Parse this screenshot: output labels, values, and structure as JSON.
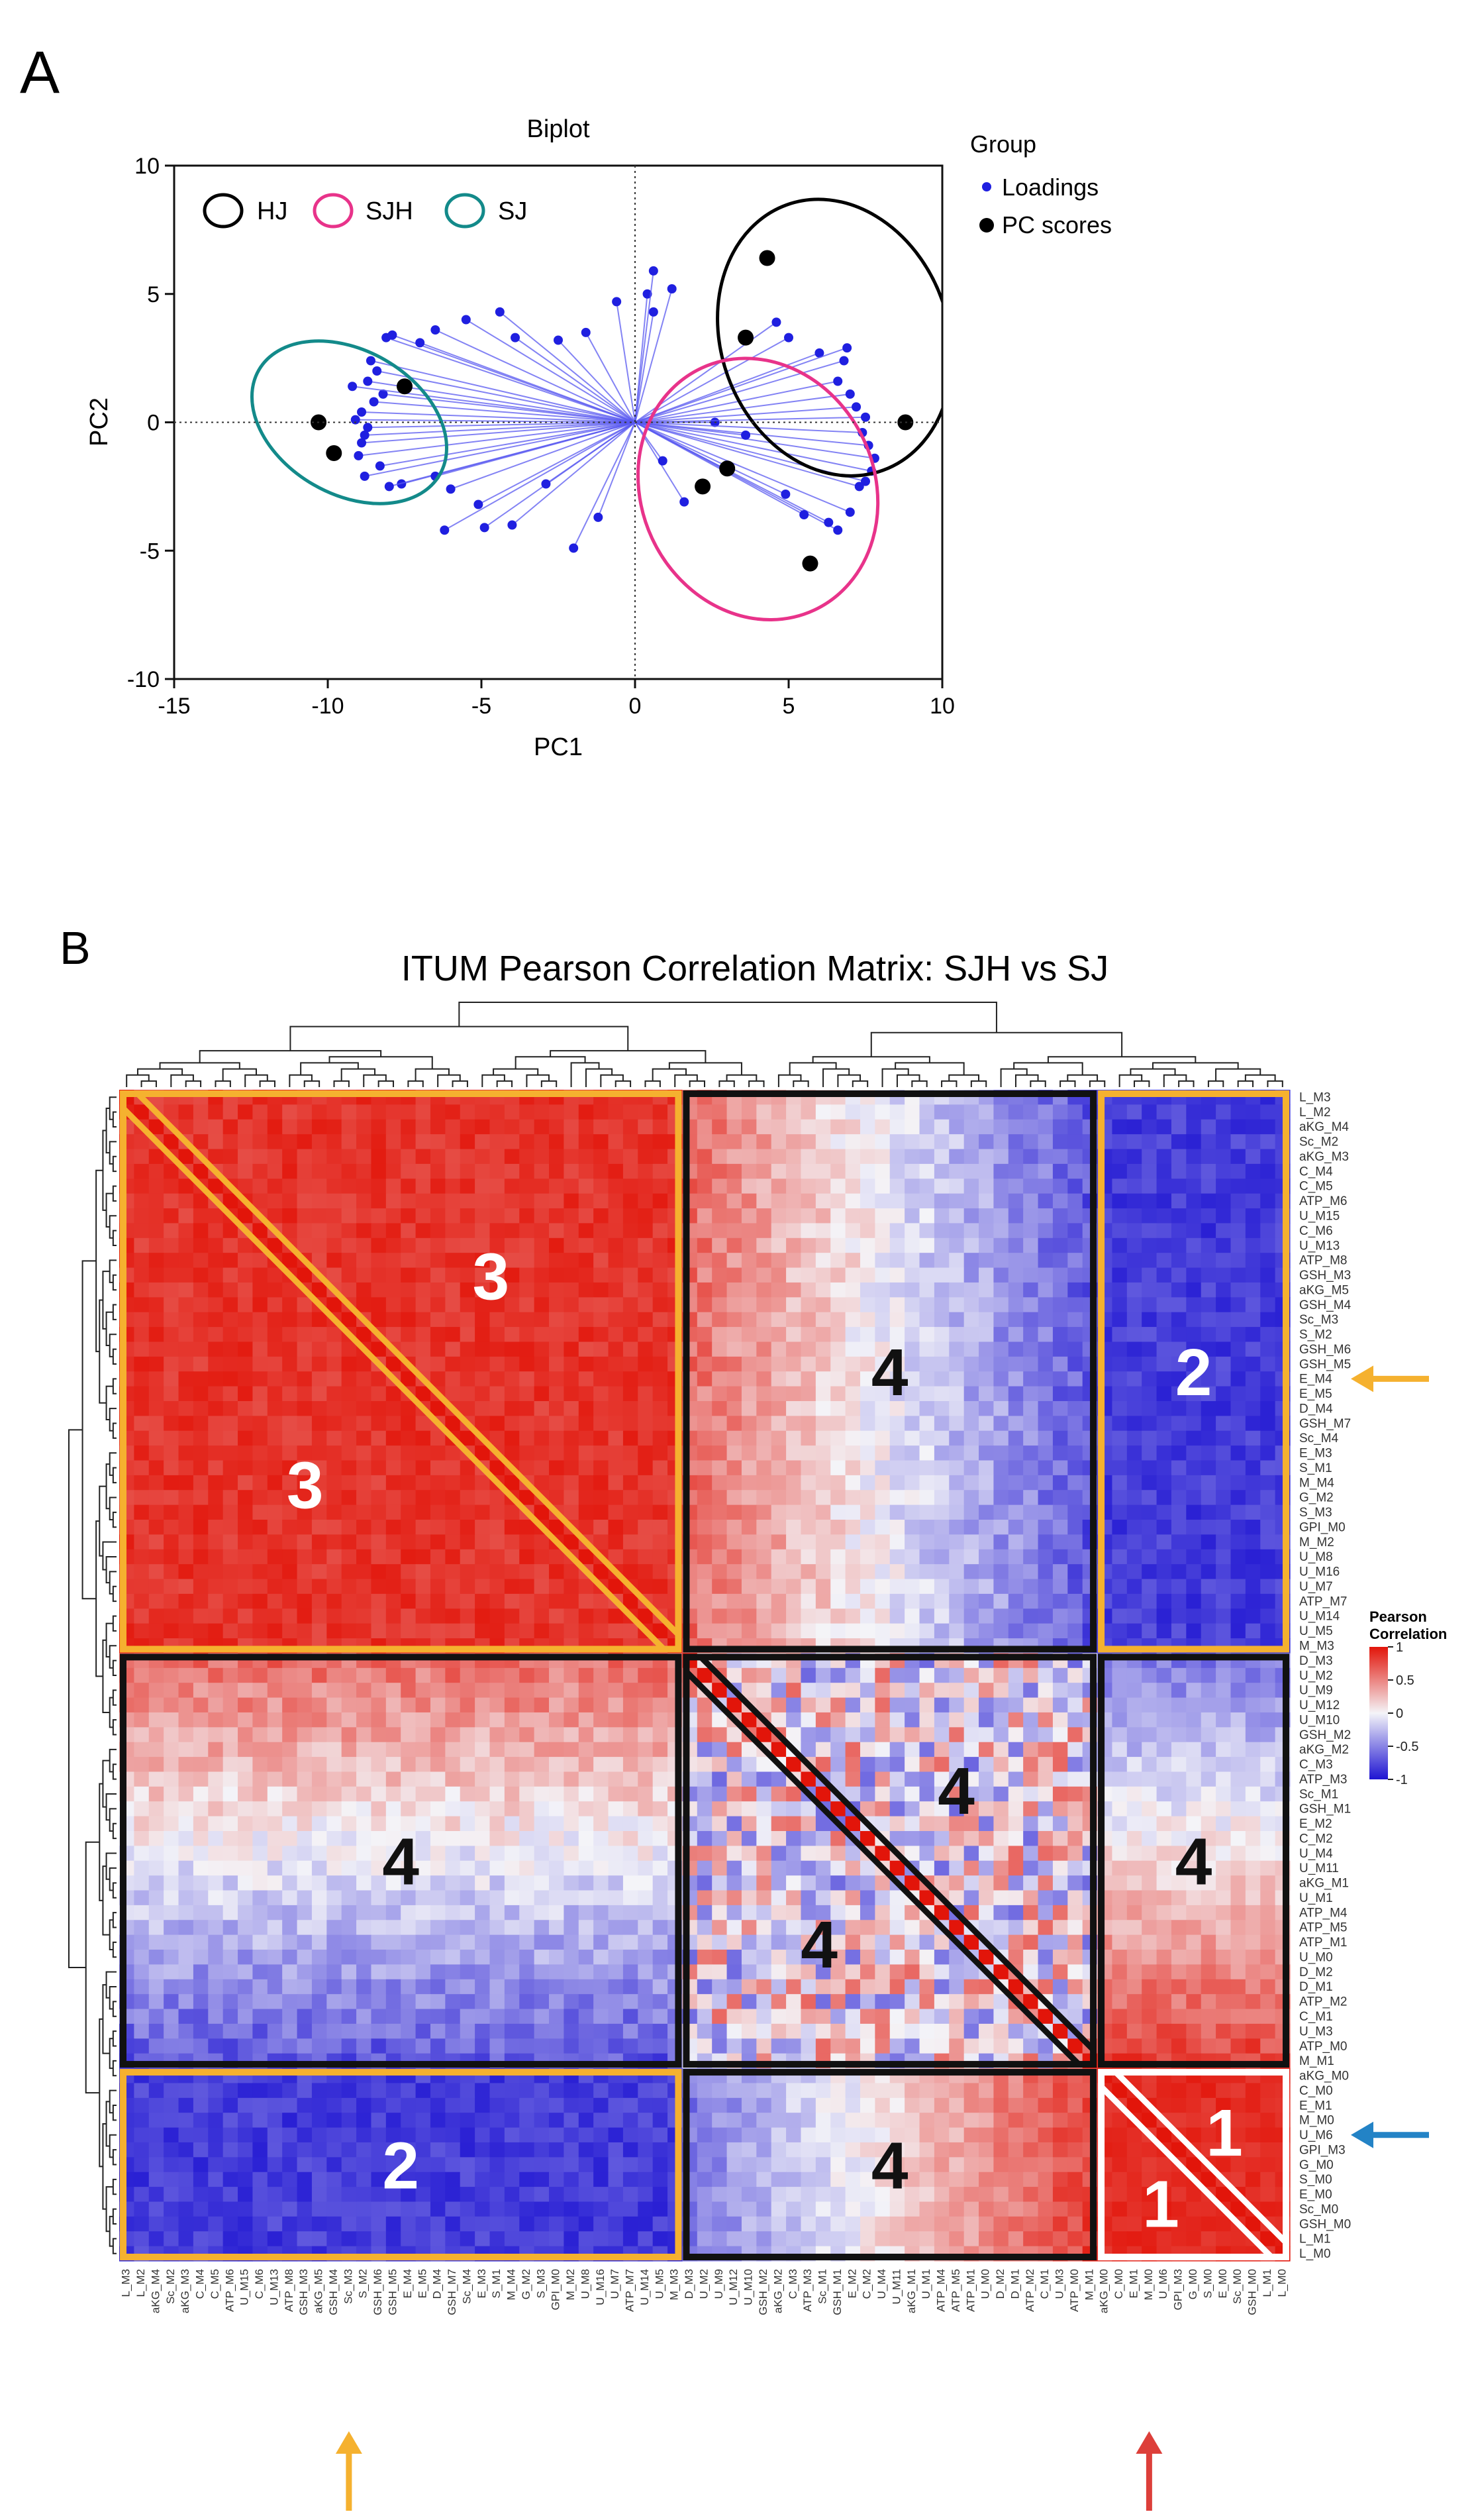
{
  "figure": {
    "panel_a_label": "A",
    "panel_b_label": "B"
  },
  "chart_data": [
    {
      "type": "scatter",
      "title": "Biplot",
      "xlabel": "PC1",
      "ylabel": "PC2",
      "xlim": [
        -15,
        10
      ],
      "ylim": [
        -10,
        10
      ],
      "xticks": [
        -15,
        -10,
        -5,
        0,
        5,
        10
      ],
      "yticks": [
        -10,
        -5,
        0,
        5,
        10
      ],
      "xtick_labels": [
        "-15",
        "-10",
        "-5",
        "0",
        "5",
        "10"
      ],
      "ytick_labels": [
        "-10",
        "-5",
        "0",
        "5",
        "10"
      ],
      "legend": {
        "title": "Group",
        "entries": [
          "Loadings",
          "PC scores"
        ],
        "colors": [
          "#1f1fe0",
          "#000000"
        ]
      },
      "group_legend": {
        "entries": [
          "HJ",
          "SJH",
          "SJ"
        ],
        "colors": [
          "#000000",
          "#e8338a",
          "#138a8a"
        ]
      },
      "group_ellipses": [
        {
          "name": "HJ",
          "color": "#000000",
          "cx": 6.5,
          "cy": 3.3,
          "rx": 3.7,
          "ry": 5.5,
          "angle_deg": -20
        },
        {
          "name": "SJH",
          "color": "#e8338a",
          "cx": 4.0,
          "cy": -2.6,
          "rx": 3.8,
          "ry": 5.2,
          "angle_deg": -25
        },
        {
          "name": "SJ",
          "color": "#138a8a",
          "cx": -9.3,
          "cy": 0.0,
          "rx": 3.4,
          "ry": 2.8,
          "angle_deg": 30
        }
      ],
      "pc_scores": {
        "x": [
          4.3,
          3.6,
          8.8,
          -10.3,
          -9.8,
          -7.5,
          2.2,
          3.0,
          5.7
        ],
        "y": [
          6.4,
          3.3,
          0.0,
          0.0,
          -1.2,
          1.4,
          -2.5,
          -1.8,
          -5.5
        ]
      },
      "loadings": {
        "x": [
          -8.9,
          -9.1,
          -8.7,
          -8.8,
          -8.5,
          -8.2,
          -8.9,
          -9.0,
          -8.7,
          -8.4,
          -8.6,
          -8.1,
          -7.9,
          -8.3,
          -8.8,
          -9.2,
          -7.6,
          -8.0,
          -7.0,
          -6.5,
          -5.5,
          -4.4,
          -3.9,
          -2.5,
          -1.6,
          -0.6,
          -6.5,
          -6.0,
          -5.1,
          -4.0,
          -6.2,
          -4.9,
          -2.9,
          -2.0,
          -1.2,
          0.4,
          0.6,
          0.6,
          1.2,
          2.6,
          4.6,
          5.0,
          6.0,
          6.9,
          6.8,
          6.6,
          7.0,
          7.2,
          7.5,
          7.4,
          7.6,
          7.8,
          7.7,
          7.5,
          7.3,
          7.0,
          6.6,
          6.3,
          5.5,
          4.9,
          3.6,
          2.9,
          1.6,
          0.9
        ],
        "y": [
          0.4,
          0.1,
          -0.2,
          -0.5,
          0.8,
          1.1,
          -0.8,
          -1.3,
          1.6,
          2.0,
          2.4,
          3.3,
          3.4,
          -1.7,
          -2.1,
          1.4,
          -2.4,
          -2.5,
          3.1,
          3.6,
          4.0,
          4.3,
          3.3,
          3.2,
          3.5,
          4.7,
          -2.1,
          -2.6,
          -3.2,
          -4.0,
          -4.2,
          -4.1,
          -2.4,
          -4.9,
          -3.7,
          5.0,
          4.3,
          5.9,
          5.2,
          0.0,
          3.9,
          3.3,
          2.7,
          2.9,
          2.4,
          1.6,
          1.1,
          0.6,
          0.2,
          -0.4,
          -0.9,
          -1.4,
          -1.9,
          -2.3,
          -2.5,
          -3.5,
          -4.2,
          -3.9,
          -3.6,
          -2.8,
          -0.5,
          -1.8,
          -3.1,
          -1.5
        ]
      }
    },
    {
      "type": "heatmap",
      "title": "ITUM Pearson Correlation Matrix: SJH vs SJ",
      "colorbar": {
        "title_line1": "Pearson",
        "title_line2": "Correlation",
        "ticks": [
          1,
          0.5,
          0,
          -0.5,
          -1
        ],
        "tick_labels": [
          "1",
          "0.5",
          "0",
          "-0.5",
          "-1"
        ],
        "low_color": "#1e14d2",
        "mid_color": "#f4f4f8",
        "high_color": "#e2150a"
      },
      "row_labels": [
        "L_M3",
        "L_M2",
        "aKG_M4",
        "Sc_M2",
        "aKG_M3",
        "C_M4",
        "C_M5",
        "ATP_M6",
        "U_M15",
        "C_M6",
        "U_M13",
        "ATP_M8",
        "GSH_M3",
        "aKG_M5",
        "GSH_M4",
        "Sc_M3",
        "S_M2",
        "GSH_M6",
        "GSH_M5",
        "E_M4",
        "E_M5",
        "D_M4",
        "GSH_M7",
        "Sc_M4",
        "E_M3",
        "S_M1",
        "M_M4",
        "G_M2",
        "S_M3",
        "GPI_M0",
        "M_M2",
        "U_M8",
        "U_M16",
        "U_M7",
        "ATP_M7",
        "U_M14",
        "U_M5",
        "M_M3",
        "D_M3",
        "U_M2",
        "U_M9",
        "U_M12",
        "U_M10",
        "GSH_M2",
        "aKG_M2",
        "C_M3",
        "ATP_M3",
        "Sc_M1",
        "GSH_M1",
        "E_M2",
        "C_M2",
        "U_M4",
        "U_M11",
        "aKG_M1",
        "U_M1",
        "ATP_M4",
        "ATP_M5",
        "ATP_M1",
        "U_M0",
        "D_M2",
        "D_M1",
        "ATP_M2",
        "C_M1",
        "U_M3",
        "ATP_M0",
        "M_M1",
        "aKG_M0",
        "C_M0",
        "E_M1",
        "M_M0",
        "U_M6",
        "GPI_M3",
        "G_M0",
        "S_M0",
        "E_M0",
        "Sc_M0",
        "GSH_M0",
        "L_M1",
        "L_M0"
      ],
      "col_labels": [
        "L_M3",
        "L_M2",
        "aKG_M4",
        "Sc_M2",
        "aKG_M3",
        "C_M4",
        "C_M5",
        "ATP_M6",
        "U_M15",
        "C_M6",
        "U_M13",
        "ATP_M8",
        "GSH_M3",
        "aKG_M5",
        "GSH_M4",
        "Sc_M3",
        "S_M2",
        "GSH_M6",
        "GSH_M5",
        "E_M4",
        "E_M5",
        "D_M4",
        "GSH_M7",
        "Sc_M4",
        "E_M3",
        "S_M1",
        "M_M4",
        "G_M2",
        "S_M3",
        "GPI_M0",
        "M_M2",
        "U_M8",
        "U_M16",
        "U_M7",
        "ATP_M7",
        "U_M14",
        "U_M5",
        "M_M3",
        "D_M3",
        "U_M2",
        "U_M9",
        "U_M12",
        "U_M10",
        "GSH_M2",
        "aKG_M2",
        "C_M3",
        "ATP_M3",
        "Sc_M1",
        "GSH_M1",
        "E_M2",
        "C_M2",
        "U_M4",
        "U_M11",
        "aKG_M1",
        "U_M1",
        "ATP_M4",
        "ATP_M5",
        "ATP_M1",
        "U_M0",
        "D_M2",
        "D_M1",
        "ATP_M2",
        "C_M1",
        "U_M3",
        "ATP_M0",
        "M_M1",
        "aKG_M0",
        "C_M0",
        "E_M1",
        "M_M0",
        "U_M6",
        "GPI_M3",
        "G_M0",
        "S_M0",
        "E_M0",
        "Sc_M0",
        "GSH_M0",
        "L_M1",
        "L_M0"
      ],
      "cluster_blocks": [
        {
          "id": "A",
          "row_start": 0,
          "row_end": 38,
          "col_start": 0,
          "col_end": 38,
          "label": "3",
          "frame_color": "#f5b12f",
          "level": 0.88
        },
        {
          "id": "B",
          "row_start": 0,
          "row_end": 38,
          "col_start": 38,
          "col_end": 66,
          "label": "4",
          "frame_color": "#111111",
          "level": 0.15
        },
        {
          "id": "C",
          "row_start": 0,
          "row_end": 38,
          "col_start": 66,
          "col_end": 79,
          "label": "2",
          "frame_color": "#f5b12f",
          "level": -0.85
        },
        {
          "id": "D",
          "row_start": 38,
          "row_end": 66,
          "col_start": 0,
          "col_end": 38,
          "label": "4",
          "frame_color": "#111111",
          "level": 0.15
        },
        {
          "id": "E",
          "row_start": 38,
          "row_end": 66,
          "col_start": 38,
          "col_end": 66,
          "label": "4",
          "frame_color": "#111111",
          "level": 0.1
        },
        {
          "id": "F",
          "row_start": 38,
          "row_end": 66,
          "col_start": 66,
          "col_end": 79,
          "label": "4",
          "frame_color": "#111111",
          "level": 0.0
        },
        {
          "id": "G",
          "row_start": 66,
          "row_end": 79,
          "col_start": 0,
          "col_end": 38,
          "label": "2",
          "frame_color": "#f5b12f",
          "level": -0.85
        },
        {
          "id": "H",
          "row_start": 66,
          "row_end": 79,
          "col_start": 38,
          "col_end": 66,
          "label": "4",
          "frame_color": "#111111",
          "level": 0.1
        },
        {
          "id": "I",
          "row_start": 66,
          "row_end": 79,
          "col_start": 66,
          "col_end": 79,
          "label": "1",
          "frame_color": "#ffffff",
          "level": 0.9
        }
      ],
      "triangle_labels": [
        "3",
        "3",
        "4",
        "4",
        "1",
        "1"
      ],
      "highlighted_variables": [
        {
          "name": "E_M4",
          "axis": "row",
          "arrow_color": "#f5b12f"
        },
        {
          "name": "U_M6",
          "axis": "row",
          "arrow_color": "#2383c6"
        },
        {
          "name": "Sc_M3",
          "axis": "col",
          "arrow_color": "#f5b12f"
        },
        {
          "name": "M_M0",
          "axis": "col",
          "arrow_color": "#dd3f3a"
        }
      ]
    }
  ]
}
